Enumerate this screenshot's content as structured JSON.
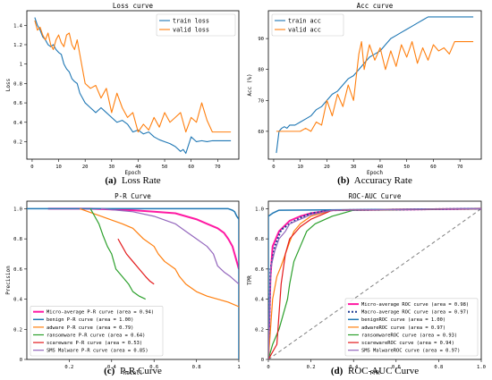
{
  "chart_data": [
    {
      "type": "line",
      "title": "Loss curve",
      "xlabel": "Epoch",
      "ylabel": "Loss",
      "xlim": [
        -2,
        78
      ],
      "ylim": [
        0.02,
        1.55
      ],
      "xticks": [
        0,
        10,
        20,
        30,
        40,
        50,
        60,
        70
      ],
      "yticks": [
        0.2,
        0.4,
        0.6,
        0.8,
        1.0,
        1.2,
        1.4
      ],
      "legend": "top-right",
      "caption_label": "(a)",
      "caption_text": "Loss Rate",
      "series": [
        {
          "name": "train loss",
          "color": "#1f77b4",
          "x": [
            1,
            2,
            3,
            4,
            5,
            6,
            7,
            8,
            9,
            10,
            11,
            12,
            13,
            14,
            15,
            16,
            17,
            18,
            19,
            20,
            22,
            24,
            26,
            28,
            30,
            32,
            34,
            36,
            38,
            40,
            42,
            44,
            46,
            48,
            50,
            52,
            54,
            56,
            57,
            58,
            60,
            62,
            64,
            66,
            68,
            70,
            72,
            75
          ],
          "y": [
            1.48,
            1.4,
            1.35,
            1.28,
            1.25,
            1.2,
            1.18,
            1.2,
            1.15,
            1.12,
            1.1,
            1.0,
            0.95,
            0.92,
            0.85,
            0.82,
            0.8,
            0.7,
            0.65,
            0.6,
            0.55,
            0.5,
            0.55,
            0.5,
            0.45,
            0.4,
            0.42,
            0.38,
            0.3,
            0.32,
            0.28,
            0.3,
            0.25,
            0.22,
            0.2,
            0.18,
            0.15,
            0.1,
            0.12,
            0.08,
            0.25,
            0.2,
            0.21,
            0.2,
            0.21,
            0.21,
            0.21,
            0.21
          ]
        },
        {
          "name": "valid loss",
          "color": "#ff7f0e",
          "x": [
            1,
            2,
            3,
            4,
            5,
            6,
            7,
            8,
            9,
            10,
            11,
            12,
            13,
            14,
            15,
            16,
            17,
            18,
            19,
            20,
            22,
            24,
            26,
            28,
            30,
            32,
            34,
            36,
            38,
            40,
            42,
            44,
            46,
            48,
            50,
            52,
            54,
            56,
            58,
            60,
            62,
            64,
            66,
            68,
            70,
            72,
            75
          ],
          "y": [
            1.45,
            1.35,
            1.38,
            1.3,
            1.25,
            1.32,
            1.2,
            1.15,
            1.25,
            1.3,
            1.22,
            1.18,
            1.3,
            1.32,
            1.2,
            1.15,
            1.25,
            1.1,
            0.95,
            0.8,
            0.75,
            0.78,
            0.65,
            0.75,
            0.5,
            0.7,
            0.55,
            0.45,
            0.5,
            0.3,
            0.38,
            0.32,
            0.45,
            0.35,
            0.5,
            0.4,
            0.45,
            0.5,
            0.3,
            0.45,
            0.4,
            0.6,
            0.42,
            0.3,
            0.3,
            0.3,
            0.3
          ]
        }
      ]
    },
    {
      "type": "line",
      "title": "Acc curve",
      "xlabel": "Epoch",
      "ylabel": "Acc (%)",
      "xlim": [
        -2,
        78
      ],
      "ylim": [
        51,
        99
      ],
      "xticks": [
        0,
        10,
        20,
        30,
        40,
        50,
        60,
        70
      ],
      "yticks": [
        60,
        70,
        80,
        90
      ],
      "legend": "top-left",
      "caption_label": "(b)",
      "caption_text": "Accuracy Rate",
      "series": [
        {
          "name": "train acc",
          "color": "#1f77b4",
          "x": [
            1,
            2,
            3,
            4,
            5,
            6,
            8,
            10,
            12,
            14,
            16,
            18,
            20,
            22,
            24,
            26,
            28,
            30,
            32,
            34,
            36,
            38,
            40,
            42,
            44,
            46,
            48,
            50,
            52,
            54,
            56,
            58,
            60,
            65,
            70,
            75
          ],
          "y": [
            53,
            60,
            61,
            61.5,
            61,
            62,
            62,
            63,
            64,
            65,
            67,
            68,
            70,
            72,
            73,
            75,
            77,
            78,
            80,
            82,
            84,
            85,
            86,
            88,
            90,
            91,
            92,
            93,
            94,
            95,
            96,
            97,
            97,
            97,
            97,
            97
          ]
        },
        {
          "name": "valid acc",
          "color": "#ff7f0e",
          "x": [
            1,
            2,
            3,
            4,
            5,
            8,
            10,
            12,
            14,
            16,
            18,
            20,
            22,
            24,
            26,
            28,
            30,
            32,
            33,
            34,
            36,
            38,
            40,
            42,
            44,
            46,
            48,
            50,
            52,
            54,
            56,
            58,
            60,
            62,
            64,
            66,
            68,
            70,
            72,
            75
          ],
          "y": [
            60,
            60,
            60,
            60,
            60,
            60,
            60,
            61,
            60,
            63,
            62,
            70,
            65,
            72,
            68,
            75,
            70,
            85,
            89,
            80,
            88,
            83,
            87,
            80,
            86,
            81,
            88,
            84,
            89,
            82,
            87,
            83,
            88,
            86,
            87,
            85,
            89,
            89,
            89,
            89
          ]
        }
      ]
    },
    {
      "type": "line",
      "title": "P-R Curve",
      "xlabel": "Recall",
      "ylabel": "Precision",
      "xlim": [
        0,
        1
      ],
      "ylim": [
        0,
        1.05
      ],
      "xticks": [
        0.2,
        0.4,
        0.6,
        0.8,
        1.0
      ],
      "xtick_labels": [
        "0.2",
        "0.4",
        "0.6",
        "0.8",
        "1"
      ],
      "yticks": [
        0,
        0.2,
        0.4,
        0.6,
        0.8,
        1.0
      ],
      "ytick_labels": [
        "0",
        "0.2",
        "0.4",
        "0.6",
        "0.8",
        "1.0"
      ],
      "legend": "lower-left",
      "caption_label": "(c)",
      "caption_text": "P-R Curve",
      "series": [
        {
          "name": "Micro-average P-R curve (area = 0.94)",
          "color": "#ff1aa3",
          "width": 2,
          "x": [
            0.1,
            0.3,
            0.5,
            0.6,
            0.7,
            0.75,
            0.8,
            0.85,
            0.9,
            0.93,
            0.95,
            0.97,
            0.98,
            0.99,
            1.0
          ],
          "y": [
            1.0,
            1.0,
            0.99,
            0.98,
            0.97,
            0.95,
            0.93,
            0.9,
            0.87,
            0.84,
            0.8,
            0.75,
            0.7,
            0.65,
            0.6
          ]
        },
        {
          "name": "benign P-R curve (area = 1.00)",
          "color": "#1f77b4",
          "width": 1.5,
          "x": [
            0.0,
            0.95,
            0.97,
            0.98,
            0.99,
            1.0,
            1.0
          ],
          "y": [
            1.0,
            1.0,
            0.99,
            0.98,
            0.95,
            0.93,
            0.0
          ]
        },
        {
          "name": "adware P-R curve (area = 0.79)",
          "color": "#ff7f0e",
          "width": 1.2,
          "x": [
            0.25,
            0.35,
            0.45,
            0.5,
            0.55,
            0.6,
            0.62,
            0.65,
            0.7,
            0.72,
            0.75,
            0.8,
            0.85,
            0.9,
            0.95,
            1.0
          ],
          "y": [
            1.0,
            0.95,
            0.9,
            0.87,
            0.8,
            0.75,
            0.7,
            0.65,
            0.6,
            0.55,
            0.5,
            0.45,
            0.42,
            0.4,
            0.38,
            0.35
          ]
        },
        {
          "name": "ransomware P-R curve (area = 0.64)",
          "color": "#2ca02c",
          "width": 1.2,
          "x": [
            0.3,
            0.32,
            0.34,
            0.36,
            0.38,
            0.4,
            0.42,
            0.45,
            0.48,
            0.5,
            0.53,
            0.56
          ],
          "y": [
            1.0,
            0.95,
            0.9,
            0.82,
            0.75,
            0.7,
            0.6,
            0.55,
            0.5,
            0.45,
            0.42,
            0.4
          ]
        },
        {
          "name": "scareware P-R curve (area = 0.53)",
          "color": "#e31a1c",
          "width": 1.2,
          "x": [
            0.43,
            0.45,
            0.47,
            0.5,
            0.53,
            0.56,
            0.58,
            0.6
          ],
          "y": [
            0.8,
            0.75,
            0.7,
            0.65,
            0.6,
            0.55,
            0.52,
            0.5
          ]
        },
        {
          "name": "SMS Malware P-R curve (area = 0.85)",
          "color": "#9467bd",
          "width": 1.2,
          "x": [
            0.35,
            0.5,
            0.6,
            0.7,
            0.75,
            0.8,
            0.85,
            0.88,
            0.9,
            0.93,
            0.96,
            1.0
          ],
          "y": [
            1.0,
            0.98,
            0.95,
            0.9,
            0.85,
            0.8,
            0.75,
            0.7,
            0.62,
            0.58,
            0.55,
            0.5
          ]
        }
      ]
    },
    {
      "type": "line",
      "title": "ROC-AUC Curve",
      "xlabel": "FPR",
      "ylabel": "TPR",
      "xlim": [
        0,
        1
      ],
      "ylim": [
        0,
        1.05
      ],
      "xticks": [
        0,
        0.2,
        0.4,
        0.6,
        0.8,
        1.0
      ],
      "xtick_labels": [
        "0",
        "0.2",
        "0.4",
        "0.6",
        "0.8",
        "1.0"
      ],
      "yticks": [
        0,
        0.2,
        0.4,
        0.6,
        0.8,
        1.0
      ],
      "ytick_labels": [
        "0",
        "0.2",
        "0.4",
        "0.6",
        "0.8",
        "1.0"
      ],
      "legend": "lower-right",
      "caption_label": "(d)",
      "caption_text": "ROC-AUC Curve",
      "series": [
        {
          "name": "Micro-average ROC curve (area = 0.98)",
          "color": "#ff1aa3",
          "width": 2,
          "x": [
            0,
            0.01,
            0.02,
            0.05,
            0.1,
            0.15,
            0.2,
            0.3,
            1.0
          ],
          "y": [
            0,
            0.55,
            0.75,
            0.85,
            0.92,
            0.95,
            0.97,
            0.99,
            1.0
          ]
        },
        {
          "name": "Macro-average ROC curve (area = 0.97)",
          "color": "#1f3a93",
          "width": 2,
          "dash": "2,2",
          "x": [
            0,
            0.01,
            0.03,
            0.06,
            0.1,
            0.15,
            0.2,
            0.3,
            1.0
          ],
          "y": [
            0,
            0.6,
            0.75,
            0.86,
            0.9,
            0.94,
            0.97,
            0.99,
            1.0
          ]
        },
        {
          "name": "benignROC curve (area = 1.00)",
          "color": "#1f77b4",
          "width": 1.5,
          "x": [
            0,
            0,
            0.02,
            0.05,
            1.0
          ],
          "y": [
            0,
            0.95,
            0.97,
            0.99,
            1.0
          ]
        },
        {
          "name": "adwareROC curve (area = 0.97)",
          "color": "#ff7f0e",
          "width": 1.2,
          "x": [
            0,
            0.02,
            0.04,
            0.06,
            0.08,
            0.1,
            0.12,
            0.15,
            0.2,
            0.3,
            1.0
          ],
          "y": [
            0,
            0.4,
            0.55,
            0.62,
            0.7,
            0.78,
            0.85,
            0.9,
            0.95,
            0.99,
            1.0
          ]
        },
        {
          "name": "ransomwareROC curve (area = 0.93)",
          "color": "#2ca02c",
          "width": 1.2,
          "x": [
            0,
            0.02,
            0.05,
            0.07,
            0.09,
            0.1,
            0.12,
            0.15,
            0.18,
            0.22,
            0.3,
            0.4,
            1.0
          ],
          "y": [
            0,
            0.1,
            0.2,
            0.3,
            0.4,
            0.5,
            0.65,
            0.75,
            0.85,
            0.9,
            0.95,
            0.99,
            1.0
          ]
        },
        {
          "name": "scarewareROC curve (area = 0.94)",
          "color": "#e31a1c",
          "width": 1.2,
          "x": [
            0,
            0.04,
            0.05,
            0.06,
            0.08,
            0.1,
            0.15,
            0.2,
            0.25,
            0.3,
            1.0
          ],
          "y": [
            0,
            0.1,
            0.3,
            0.5,
            0.7,
            0.8,
            0.88,
            0.93,
            0.96,
            0.99,
            1.0
          ]
        },
        {
          "name": "SMS MalwareROC curve (area = 0.97)",
          "color": "#9467bd",
          "width": 1.2,
          "x": [
            0,
            0.01,
            0.03,
            0.05,
            0.08,
            0.1,
            0.15,
            0.2,
            0.3,
            1.0
          ],
          "y": [
            0,
            0.6,
            0.72,
            0.8,
            0.85,
            0.9,
            0.93,
            0.96,
            0.99,
            1.0
          ]
        }
      ],
      "reference": {
        "color": "#808080",
        "x": [
          0,
          1
        ],
        "y": [
          0,
          1
        ]
      }
    }
  ]
}
